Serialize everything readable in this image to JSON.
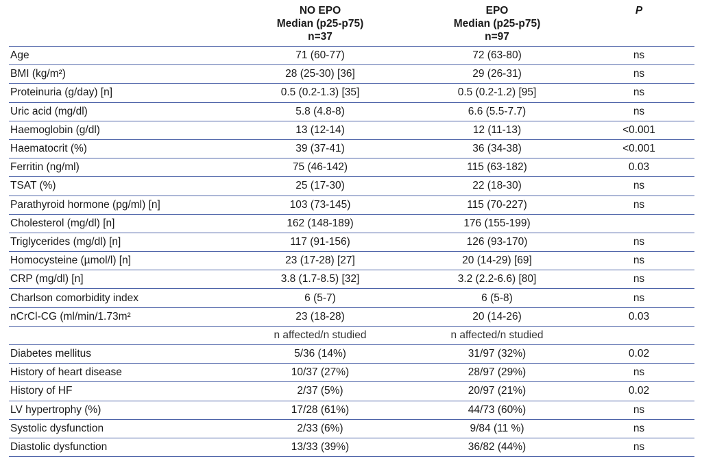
{
  "header": {
    "col0": "",
    "col1": [
      "NO EPO",
      "Median (p25-p75)",
      "n=37"
    ],
    "col2": [
      "EPO",
      "Median (p25-p75)",
      "n=97"
    ],
    "col3": "P"
  },
  "rows": [
    {
      "label": "Age",
      "no_epo": "71 (60-77)",
      "epo": "72 (63-80)",
      "p": "ns"
    },
    {
      "label": "BMI (kg/m²)",
      "no_epo": "28 (25-30) [36]",
      "epo": "29 (26-31)",
      "p": "ns"
    },
    {
      "label": "Proteinuria (g/day) [n]",
      "no_epo": "0.5 (0.2-1.3) [35]",
      "epo": "0.5 (0.2-1.2) [95]",
      "p": "ns"
    },
    {
      "label": "Uric acid (mg/dl)",
      "no_epo": "5.8 (4.8-8)",
      "epo": "6.6 (5.5-7.7)",
      "p": "ns"
    },
    {
      "label": "Haemoglobin (g/dl)",
      "no_epo": "13 (12-14)",
      "epo": "12 (11-13)",
      "p": "<0.001"
    },
    {
      "label": "Haematocrit (%)",
      "no_epo": "39 (37-41)",
      "epo": "36 (34-38)",
      "p": "<0.001"
    },
    {
      "label": "Ferritin (ng/ml)",
      "no_epo": "75 (46-142)",
      "epo": "115 (63-182)",
      "p": "0.03"
    },
    {
      "label": "TSAT (%)",
      "no_epo": "25 (17-30)",
      "epo": "22 (18-30)",
      "p": "ns"
    },
    {
      "label": "Parathyroid hormone (pg/ml) [n]",
      "no_epo": "103 (73-145)",
      "epo": "115 (70-227)",
      "p": "ns"
    },
    {
      "label": "Cholesterol (mg/dl) [n]",
      "no_epo": "162 (148-189)",
      "epo": "176 (155-199)",
      "p": ""
    },
    {
      "label": "Triglycerides (mg/dl) [n]",
      "no_epo": "117 (91-156)",
      "epo": "126 (93-170)",
      "p": "ns"
    },
    {
      "label": "Homocysteine (µmol/l) [n]",
      "no_epo": "23 (17-28) [27]",
      "epo": "20 (14-29) [69]",
      "p": "ns"
    },
    {
      "label": "CRP (mg/dl) [n]",
      "no_epo": "3.8 (1.7-8.5) [32]",
      "epo": "3.2 (2.2-6.6) [80]",
      "p": "ns"
    },
    {
      "label": "Charlson comorbidity index",
      "no_epo": "6 (5-7)",
      "epo": "6 (5-8)",
      "p": "ns"
    },
    {
      "label": "nCrCl-CG (ml/min/1.73m²",
      "no_epo": "23 (18-28)",
      "epo": "20 (14-26)",
      "p": "0.03"
    },
    {
      "label": "",
      "no_epo": "n affected/n studied",
      "epo": "n affected/n studied",
      "p": "",
      "sub": true
    },
    {
      "label": "Diabetes mellitus",
      "no_epo": "5/36 (14%)",
      "epo": "31/97 (32%)",
      "p": "0.02"
    },
    {
      "label": "History of heart disease",
      "no_epo": "10/37 (27%)",
      "epo": "28/97 (29%)",
      "p": "ns"
    },
    {
      "label": "History of HF",
      "no_epo": "2/37 (5%)",
      "epo": "20/97 (21%)",
      "p": "0.02"
    },
    {
      "label": "LV hypertrophy (%)",
      "no_epo": "17/28 (61%)",
      "epo": "44/73 (60%)",
      "p": "ns"
    },
    {
      "label": "Systolic dysfunction",
      "no_epo": "2/33 (6%)",
      "epo": "9/84 (11 %)",
      "p": "ns"
    },
    {
      "label": "Diastolic dysfunction",
      "no_epo": "13/33 (39%)",
      "epo": "36/82 (44%)",
      "p": "ns"
    }
  ]
}
